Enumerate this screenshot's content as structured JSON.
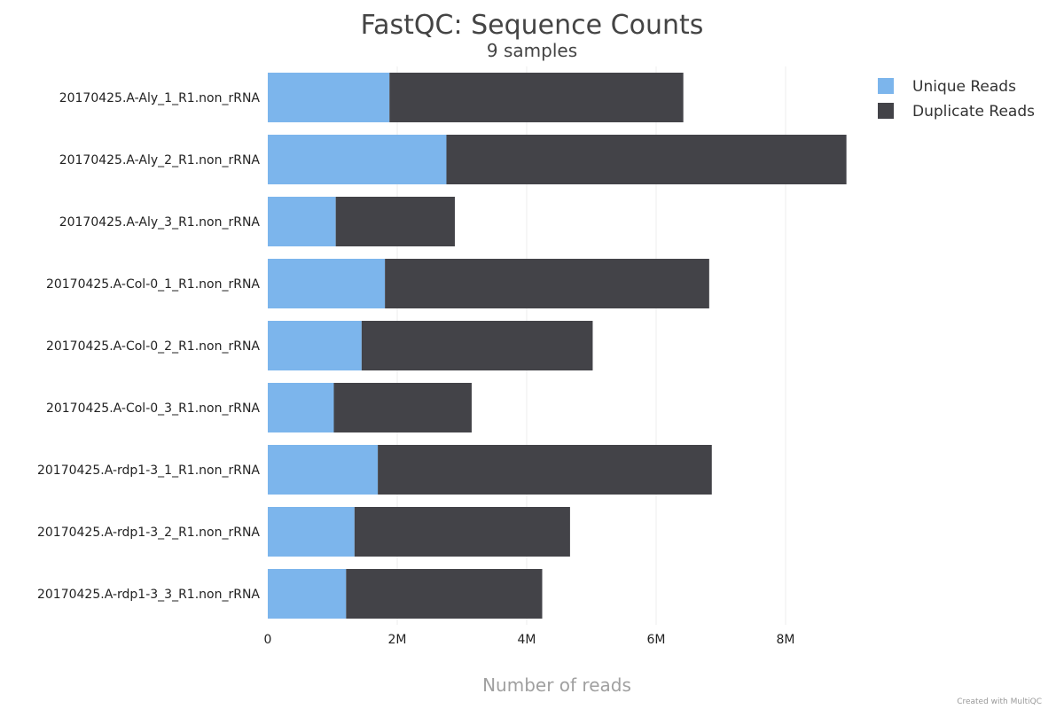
{
  "chart_data": {
    "type": "bar",
    "orientation": "horizontal",
    "stacked": true,
    "title": "FastQC: Sequence Counts",
    "subtitle": "9 samples",
    "xlabel": "Number of reads",
    "ylabel": "",
    "xlim": [
      0,
      9000000
    ],
    "xticks": [
      {
        "value": 0,
        "label": "0"
      },
      {
        "value": 2000000,
        "label": "2M"
      },
      {
        "value": 4000000,
        "label": "4M"
      },
      {
        "value": 6000000,
        "label": "6M"
      },
      {
        "value": 8000000,
        "label": "8M"
      }
    ],
    "grid": true,
    "legend_position": "top-right",
    "categories": [
      "20170425.A-Aly_1_R1.non_rRNA",
      "20170425.A-Aly_2_R1.non_rRNA",
      "20170425.A-Aly_3_R1.non_rRNA",
      "20170425.A-Col-0_1_R1.non_rRNA",
      "20170425.A-Col-0_2_R1.non_rRNA",
      "20170425.A-Col-0_3_R1.non_rRNA",
      "20170425.A-rdp1-3_1_R1.non_rRNA",
      "20170425.A-rdp1-3_2_R1.non_rRNA",
      "20170425.A-rdp1-3_3_R1.non_rRNA"
    ],
    "series": [
      {
        "name": "Unique Reads",
        "color": "#7cb5ec",
        "values": [
          1880000,
          2760000,
          1050000,
          1810000,
          1450000,
          1020000,
          1700000,
          1340000,
          1210000
        ]
      },
      {
        "name": "Duplicate Reads",
        "color": "#434348",
        "values": [
          4540000,
          6180000,
          1840000,
          5010000,
          3570000,
          2130000,
          5160000,
          3330000,
          3030000
        ]
      }
    ]
  },
  "footer": {
    "credit": "Created with MultiQC"
  }
}
